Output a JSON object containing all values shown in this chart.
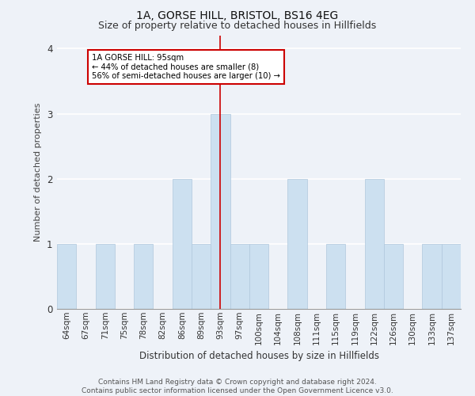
{
  "title1": "1A, GORSE HILL, BRISTOL, BS16 4EG",
  "title2": "Size of property relative to detached houses in Hillfields",
  "xlabel": "Distribution of detached houses by size in Hillfields",
  "ylabel": "Number of detached properties",
  "footer": "Contains HM Land Registry data © Crown copyright and database right 2024.\nContains public sector information licensed under the Open Government Licence v3.0.",
  "categories": [
    "64sqm",
    "67sqm",
    "71sqm",
    "75sqm",
    "78sqm",
    "82sqm",
    "86sqm",
    "89sqm",
    "93sqm",
    "97sqm",
    "100sqm",
    "104sqm",
    "108sqm",
    "111sqm",
    "115sqm",
    "119sqm",
    "122sqm",
    "126sqm",
    "130sqm",
    "133sqm",
    "137sqm"
  ],
  "values": [
    1,
    0,
    1,
    0,
    1,
    0,
    2,
    1,
    3,
    1,
    1,
    0,
    2,
    0,
    1,
    0,
    2,
    1,
    0,
    1,
    1
  ],
  "highlight_index": 8,
  "bar_color": "#cce0f0",
  "bar_edge_color": "#b0c8dd",
  "highlight_line_color": "#cc0000",
  "annotation_text": "1A GORSE HILL: 95sqm\n← 44% of detached houses are smaller (8)\n56% of semi-detached houses are larger (10) →",
  "annotation_box_color": "#ffffff",
  "annotation_box_edge_color": "#cc0000",
  "ylim": [
    0,
    4.2
  ],
  "yticks": [
    0,
    1,
    2,
    3,
    4
  ],
  "background_color": "#eef2f8",
  "grid_color": "#ffffff",
  "title_fontsize": 10,
  "subtitle_fontsize": 9,
  "axis_label_fontsize": 8,
  "tick_fontsize": 7.5,
  "footer_fontsize": 6.5
}
